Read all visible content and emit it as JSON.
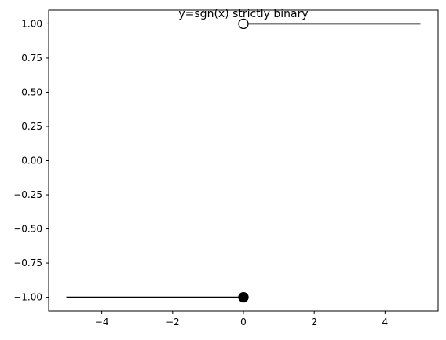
{
  "chart_data": {
    "type": "line",
    "title": "y=sgn(x) strictly binary",
    "xlabel": "",
    "ylabel": "",
    "xlim": [
      -5.5,
      5.5
    ],
    "ylim": [
      -1.1,
      1.1
    ],
    "x_ticks": [
      -4,
      -2,
      0,
      2,
      4
    ],
    "x_tick_labels": [
      "−4",
      "−2",
      "0",
      "2",
      "4"
    ],
    "y_ticks": [
      -1.0,
      -0.75,
      -0.5,
      -0.25,
      0.0,
      0.25,
      0.5,
      0.75,
      1.0
    ],
    "y_tick_labels": [
      "−1.00",
      "−0.75",
      "−0.50",
      "−0.25",
      "0.00",
      "0.25",
      "0.50",
      "0.75",
      "1.00"
    ],
    "grid": false,
    "series": [
      {
        "x": [
          -5,
          0
        ],
        "y": [
          -1,
          -1
        ],
        "color": "#000000"
      },
      {
        "x": [
          0,
          5
        ],
        "y": [
          1,
          1
        ],
        "color": "#000000"
      }
    ],
    "points": [
      {
        "x": 0,
        "y": -1,
        "style": "closed"
      },
      {
        "x": 0,
        "y": 1,
        "style": "open"
      }
    ]
  }
}
